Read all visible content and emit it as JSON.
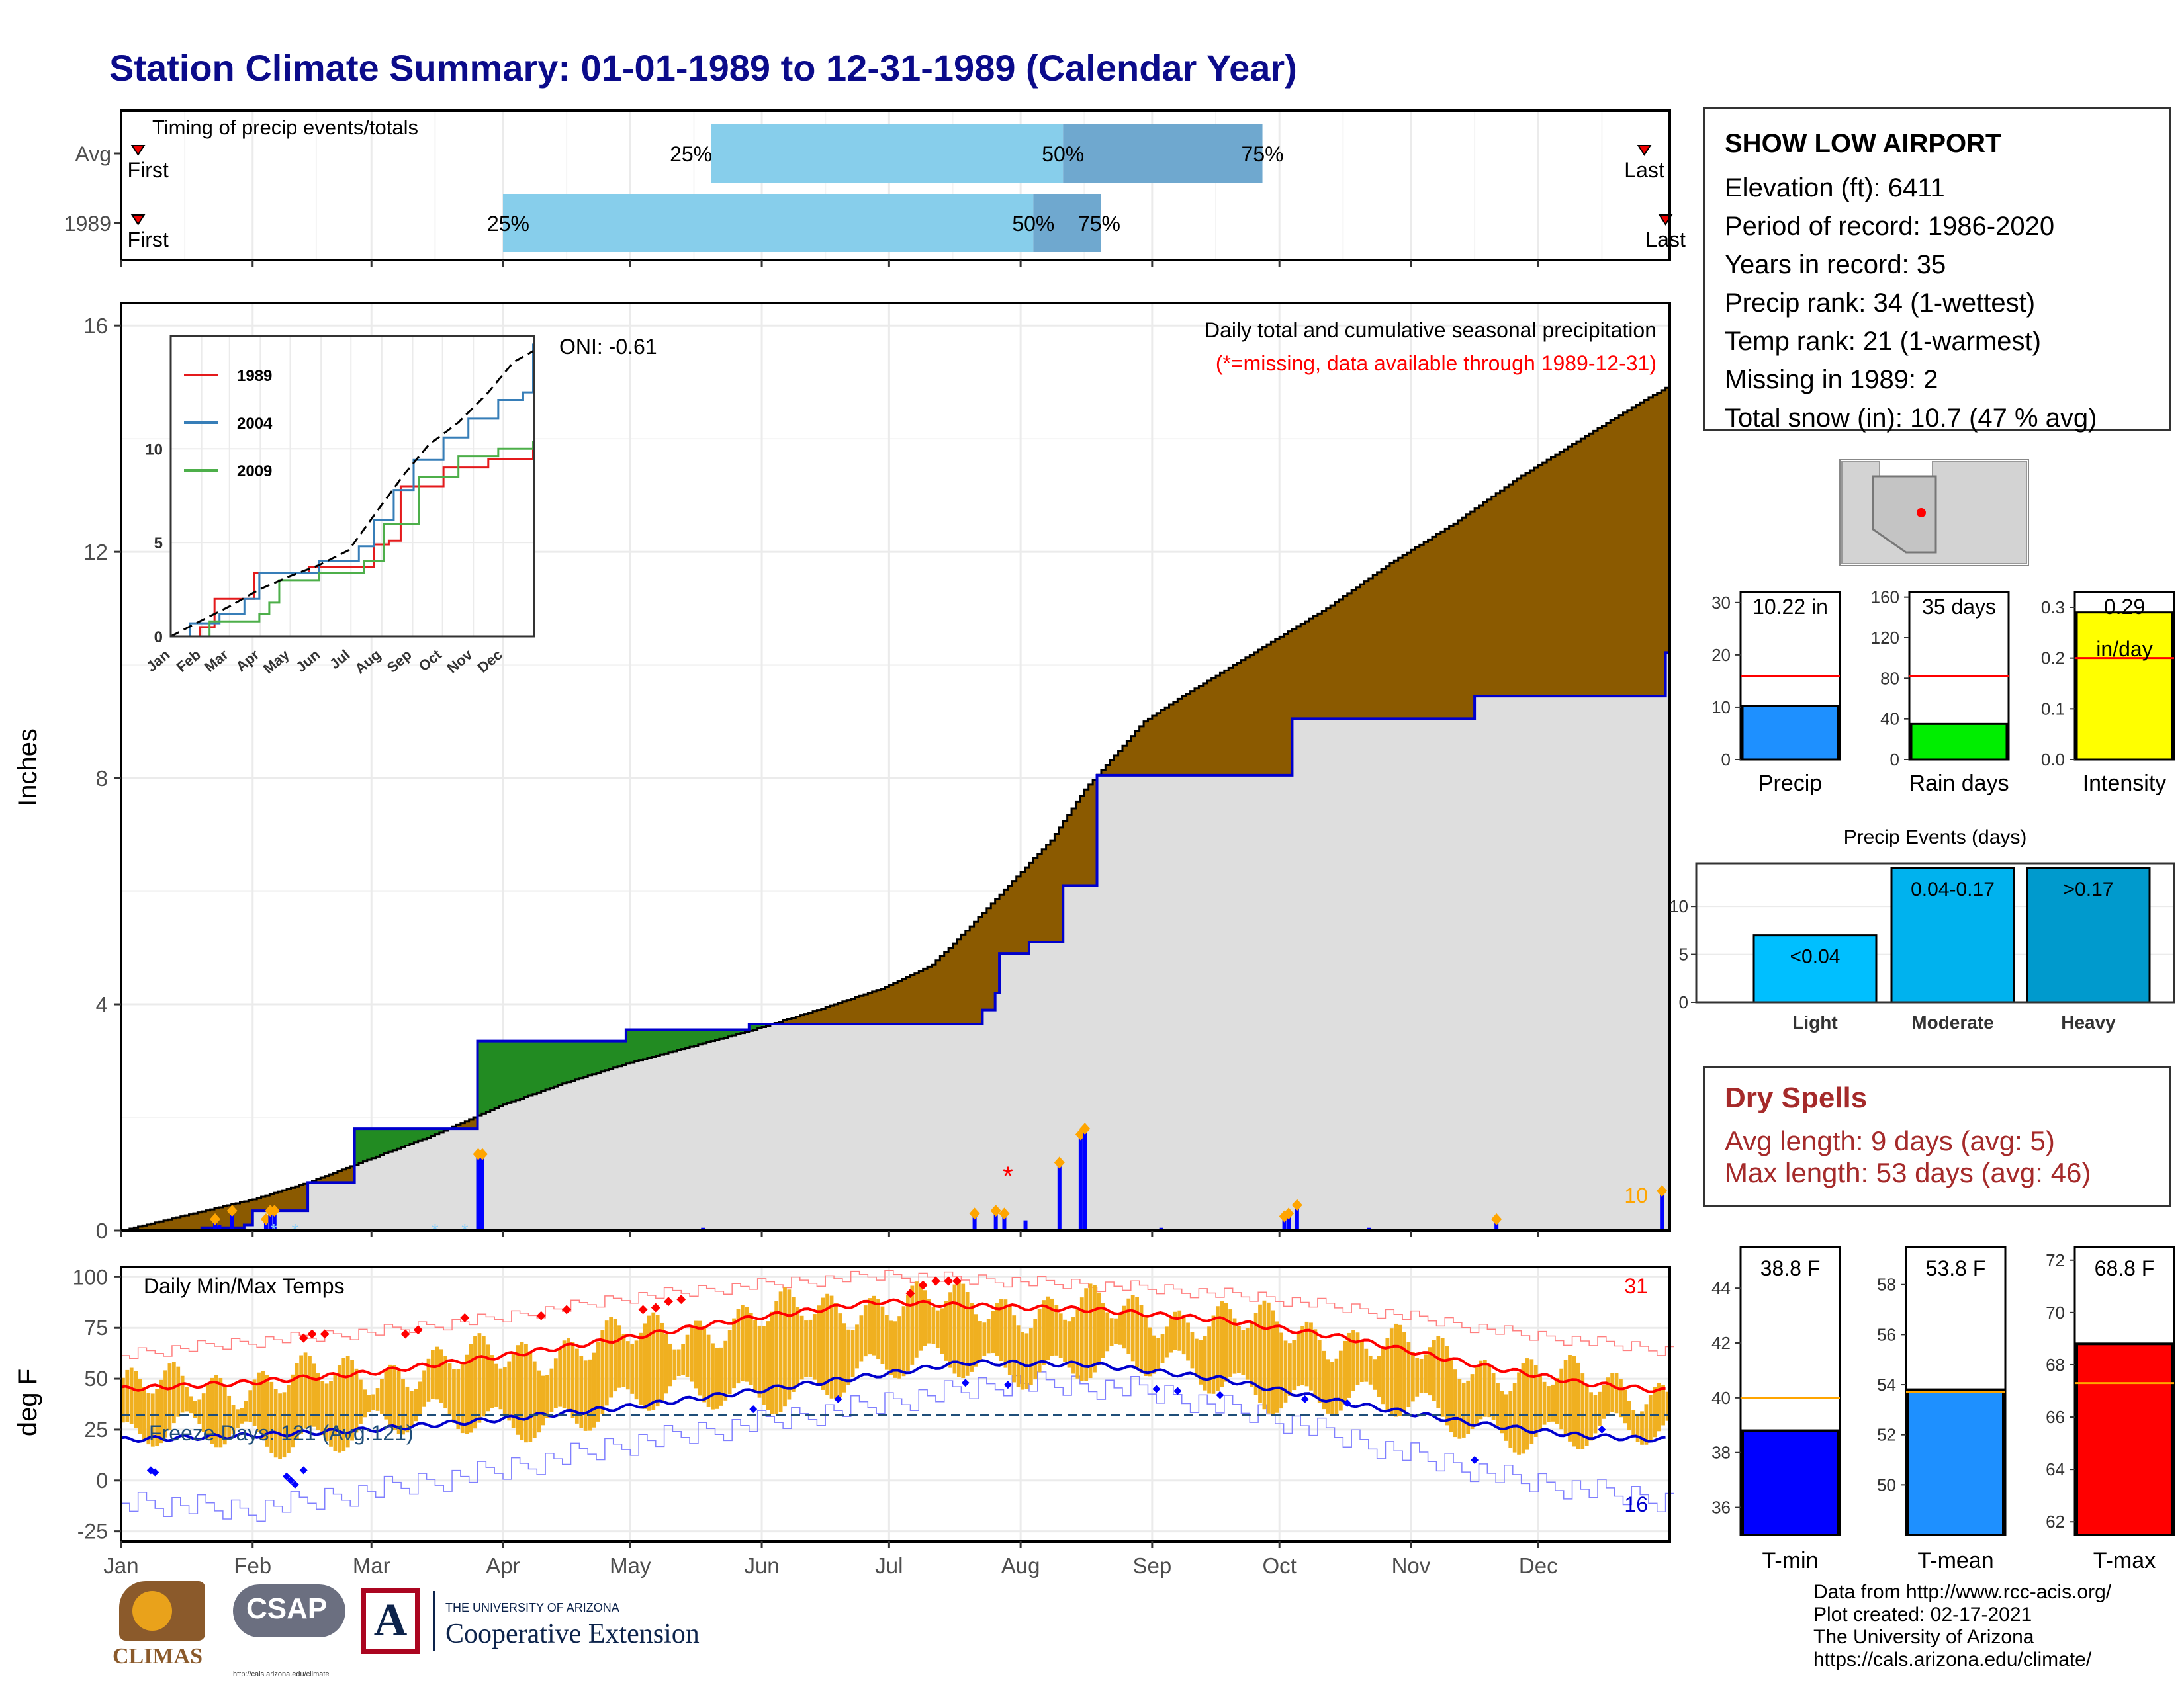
{
  "title": "Station Climate Summary: 01-01-1989 to 12-31-1989 (Calendar Year)",
  "station": {
    "name": "SHOW LOW AIRPORT",
    "lines": [
      "Elevation (ft): 6411",
      "Period of record: 1986-2020",
      "Years in record: 35",
      "Precip rank: 34 (1-wettest)",
      "Temp rank: 21 (1-warmest)",
      "Missing in 1989: 2",
      "Total snow (in): 10.7 (47 % avg)"
    ]
  },
  "timing": {
    "title": "Timing of precip events/totals",
    "rows": [
      {
        "label": "Avg",
        "first_day": 5,
        "p25_day": 140,
        "p50_day": 223,
        "p75_day": 270,
        "last_day": 360
      },
      {
        "label": "1989",
        "first_day": 5,
        "p25_day": 91,
        "p50_day": 216,
        "p75_day": 232,
        "last_day": 365
      }
    ],
    "labels": {
      "first": "First",
      "last": "Last",
      "p25": "25%",
      "p50": "50%",
      "p75": "75%"
    }
  },
  "precip": {
    "ylabel": "Inches",
    "ylim": [
      0,
      16.4
    ],
    "yticks": [
      0,
      4,
      8,
      12,
      16
    ],
    "header_text": "Daily total and cumulative seasonal precipitation",
    "missing_note": "(*=missing, data available through 1989-12-31)",
    "oni": "ONI: -0.61",
    "corner_count": "10",
    "avg_cumulative": [
      [
        1,
        0
      ],
      [
        15,
        0.25
      ],
      [
        32,
        0.55
      ],
      [
        45,
        0.85
      ],
      [
        59,
        1.25
      ],
      [
        75,
        1.7
      ],
      [
        90,
        2.2
      ],
      [
        105,
        2.6
      ],
      [
        120,
        2.95
      ],
      [
        135,
        3.25
      ],
      [
        150,
        3.55
      ],
      [
        165,
        3.9
      ],
      [
        181,
        4.3
      ],
      [
        192,
        4.7
      ],
      [
        200,
        5.3
      ],
      [
        210,
        6.1
      ],
      [
        220,
        6.9
      ],
      [
        228,
        7.8
      ],
      [
        235,
        8.4
      ],
      [
        242,
        9.0
      ],
      [
        250,
        9.4
      ],
      [
        262,
        9.95
      ],
      [
        274,
        10.5
      ],
      [
        285,
        11.0
      ],
      [
        300,
        11.8
      ],
      [
        315,
        12.5
      ],
      [
        330,
        13.3
      ],
      [
        345,
        14.0
      ],
      [
        358,
        14.6
      ],
      [
        365,
        14.9
      ]
    ],
    "obs_cumulative": [
      [
        1,
        0
      ],
      [
        20,
        0.05
      ],
      [
        30,
        0.1
      ],
      [
        32,
        0.35
      ],
      [
        44,
        0.35
      ],
      [
        45,
        0.85
      ],
      [
        55,
        0.85
      ],
      [
        56,
        1.8
      ],
      [
        84,
        1.8
      ],
      [
        85,
        3.35
      ],
      [
        120,
        3.55
      ],
      [
        149,
        3.65
      ],
      [
        200,
        3.65
      ],
      [
        204,
        3.9
      ],
      [
        207,
        4.2
      ],
      [
        208,
        4.9
      ],
      [
        215,
        5.1
      ],
      [
        222,
        5.1
      ],
      [
        223,
        6.1
      ],
      [
        230,
        6.1
      ],
      [
        231,
        8.05
      ],
      [
        260,
        8.05
      ],
      [
        275,
        8.05
      ],
      [
        276,
        8.05
      ],
      [
        277,
        9.05
      ],
      [
        318,
        9.05
      ],
      [
        320,
        9.45
      ],
      [
        364,
        9.45
      ],
      [
        365,
        10.22
      ]
    ],
    "daily_bars": [
      [
        23,
        0.2
      ],
      [
        24,
        0.1
      ],
      [
        27,
        0.35
      ],
      [
        35,
        0.2
      ],
      [
        36,
        0.35
      ],
      [
        37,
        0.35
      ],
      [
        85,
        1.35
      ],
      [
        86,
        1.35
      ],
      [
        138,
        0.05
      ],
      [
        202,
        0.3
      ],
      [
        207,
        0.35
      ],
      [
        209,
        0.3
      ],
      [
        214,
        0.18
      ],
      [
        222,
        1.2
      ],
      [
        227,
        1.7
      ],
      [
        228,
        1.8
      ],
      [
        246,
        0.05
      ],
      [
        275,
        0.25
      ],
      [
        276,
        0.3
      ],
      [
        278,
        0.45
      ],
      [
        295,
        0.05
      ],
      [
        325,
        0.2
      ],
      [
        364,
        0.7
      ]
    ]
  },
  "inset": {
    "ylim": [
      0,
      16
    ],
    "yticks": [
      0,
      5,
      10
    ],
    "months": [
      "Jan",
      "Feb",
      "Mar",
      "Apr",
      "May",
      "Jun",
      "Jul",
      "Aug",
      "Sep",
      "Oct",
      "Nov",
      "Dec"
    ],
    "series": [
      {
        "name": "1989",
        "color": "#e41a1c",
        "points": [
          [
            1,
            0
          ],
          [
            30,
            0.5
          ],
          [
            45,
            2.0
          ],
          [
            60,
            2.0
          ],
          [
            85,
            3.4
          ],
          [
            140,
            3.7
          ],
          [
            200,
            3.7
          ],
          [
            205,
            4.9
          ],
          [
            220,
            5.1
          ],
          [
            232,
            8.0
          ],
          [
            275,
            9.0
          ],
          [
            320,
            9.45
          ],
          [
            365,
            10.2
          ]
        ]
      },
      {
        "name": "2004",
        "color": "#377eb8",
        "points": [
          [
            1,
            0
          ],
          [
            20,
            0.7
          ],
          [
            50,
            1.2
          ],
          [
            75,
            2.0
          ],
          [
            90,
            3.4
          ],
          [
            150,
            4.0
          ],
          [
            190,
            4.8
          ],
          [
            205,
            6.2
          ],
          [
            225,
            7.8
          ],
          [
            245,
            9.4
          ],
          [
            275,
            10.6
          ],
          [
            300,
            11.6
          ],
          [
            330,
            12.6
          ],
          [
            355,
            13.0
          ],
          [
            365,
            15.6
          ]
        ]
      },
      {
        "name": "2009",
        "color": "#4daf4a",
        "points": [
          [
            1,
            0
          ],
          [
            40,
            0.8
          ],
          [
            90,
            1.2
          ],
          [
            100,
            1.8
          ],
          [
            110,
            3.0
          ],
          [
            150,
            3.4
          ],
          [
            195,
            4.0
          ],
          [
            215,
            6.0
          ],
          [
            250,
            8.5
          ],
          [
            290,
            9.6
          ],
          [
            330,
            10.0
          ],
          [
            365,
            10.4
          ]
        ]
      }
    ],
    "avg": [
      [
        1,
        0
      ],
      [
        30,
        0.8
      ],
      [
        60,
        1.6
      ],
      [
        90,
        2.5
      ],
      [
        120,
        3.2
      ],
      [
        150,
        3.8
      ],
      [
        180,
        4.6
      ],
      [
        210,
        6.8
      ],
      [
        235,
        8.6
      ],
      [
        260,
        10.2
      ],
      [
        290,
        11.4
      ],
      [
        320,
        13.0
      ],
      [
        345,
        14.6
      ],
      [
        365,
        15.2
      ]
    ]
  },
  "temps": {
    "title": "Daily Min/Max Temps",
    "ylabel": "deg F",
    "ylim": [
      -30,
      105
    ],
    "yticks": [
      -25,
      0,
      25,
      50,
      75,
      100
    ],
    "freeze_label": "Freeze Days: 121 (Avg:121)",
    "freeze_line": 32,
    "record_high_count": "31",
    "record_low_count": "16",
    "normal_max": [
      [
        1,
        45
      ],
      [
        30,
        48
      ],
      [
        60,
        53
      ],
      [
        90,
        61
      ],
      [
        120,
        70
      ],
      [
        150,
        80
      ],
      [
        180,
        88
      ],
      [
        200,
        86
      ],
      [
        230,
        84
      ],
      [
        260,
        79
      ],
      [
        290,
        70
      ],
      [
        320,
        57
      ],
      [
        345,
        48
      ],
      [
        365,
        44
      ]
    ],
    "normal_min": [
      [
        1,
        20
      ],
      [
        30,
        22
      ],
      [
        60,
        25
      ],
      [
        90,
        30
      ],
      [
        120,
        36
      ],
      [
        150,
        44
      ],
      [
        180,
        52
      ],
      [
        200,
        58
      ],
      [
        230,
        57
      ],
      [
        260,
        50
      ],
      [
        290,
        38
      ],
      [
        320,
        28
      ],
      [
        345,
        22
      ],
      [
        365,
        20
      ]
    ],
    "record_max": [
      [
        1,
        62
      ],
      [
        30,
        68
      ],
      [
        60,
        73
      ],
      [
        90,
        80
      ],
      [
        120,
        90
      ],
      [
        150,
        96
      ],
      [
        180,
        101
      ],
      [
        210,
        98
      ],
      [
        240,
        95
      ],
      [
        270,
        90
      ],
      [
        300,
        82
      ],
      [
        330,
        72
      ],
      [
        365,
        64
      ]
    ],
    "record_min": [
      [
        1,
        -10
      ],
      [
        30,
        -15
      ],
      [
        60,
        -5
      ],
      [
        90,
        5
      ],
      [
        120,
        18
      ],
      [
        150,
        28
      ],
      [
        180,
        38
      ],
      [
        210,
        48
      ],
      [
        240,
        45
      ],
      [
        270,
        32
      ],
      [
        300,
        15
      ],
      [
        330,
        0
      ],
      [
        365,
        -10
      ]
    ]
  },
  "months": [
    "Jan",
    "Feb",
    "Mar",
    "Apr",
    "May",
    "Jun",
    "Jul",
    "Aug",
    "Sep",
    "Oct",
    "Nov",
    "Dec"
  ],
  "summary_bars": [
    {
      "title": "Precip",
      "value_label": "10.22 in",
      "value": 10.22,
      "normal": 16,
      "ylim": [
        0,
        32
      ],
      "yticks": [
        0,
        10,
        20,
        30
      ],
      "color": "#1e90ff"
    },
    {
      "title": "Rain days",
      "value_label": "35 days",
      "value": 35,
      "normal": 82,
      "ylim": [
        0,
        165
      ],
      "yticks": [
        0,
        40,
        80,
        120,
        160
      ],
      "color": "#00ee00"
    },
    {
      "title": "Intensity",
      "value_label": "0.29",
      "value_label2": "in/day",
      "value": 0.29,
      "normal": 0.2,
      "ylim": [
        0,
        0.33
      ],
      "yticks": [
        0.0,
        0.1,
        0.2,
        0.3
      ],
      "color": "#ffff00"
    }
  ],
  "events": {
    "title": "Precip Events (days)",
    "ylim": [
      0,
      14.5
    ],
    "yticks": [
      0,
      5,
      10
    ],
    "bars": [
      {
        "name": "Light",
        "label": "<0.04",
        "value": 7,
        "color": "#00bfff"
      },
      {
        "name": "Moderate",
        "label": "0.04-0.17",
        "value": 14,
        "color": "#00b2ee"
      },
      {
        "name": "Heavy",
        "label": ">0.17",
        "value": 14,
        "color": "#009acd"
      }
    ]
  },
  "dry_spells": {
    "title": "Dry Spells",
    "lines": [
      "Avg length: 9 days (avg: 5)",
      "Max length: 53 days (avg: 46)"
    ]
  },
  "temp_bars": [
    {
      "title": "T-min",
      "value_label": "38.8 F",
      "value": 38.8,
      "normal": 40,
      "ylim": [
        35,
        45.5
      ],
      "yticks": [
        36,
        38,
        40,
        42,
        44
      ],
      "color": "#0000ff"
    },
    {
      "title": "T-mean",
      "value_label": "53.8 F",
      "value": 53.8,
      "normal": 53.7,
      "ylim": [
        48,
        59.5
      ],
      "yticks": [
        50,
        52,
        54,
        56,
        58
      ],
      "color": "#1e90ff"
    },
    {
      "title": "T-max",
      "value_label": "68.8 F",
      "value": 68.8,
      "normal": 67.3,
      "ylim": [
        61.5,
        72.5
      ],
      "yticks": [
        62,
        64,
        66,
        68,
        70,
        72
      ],
      "color": "#ff0000"
    }
  ],
  "footer": [
    "Data from http://www.rcc-acis.org/",
    "Plot created: 02-17-2021",
    "The University of Arizona",
    "https://cals.arizona.edu/climate/"
  ],
  "logos": {
    "climas": "CLIMAS",
    "csap": "CSAP",
    "csap_url": "http://cals.arizona.edu/climate",
    "ua_small": "THE UNIVERSITY OF ARIZONA",
    "ua_big": "Cooperative Extension"
  }
}
